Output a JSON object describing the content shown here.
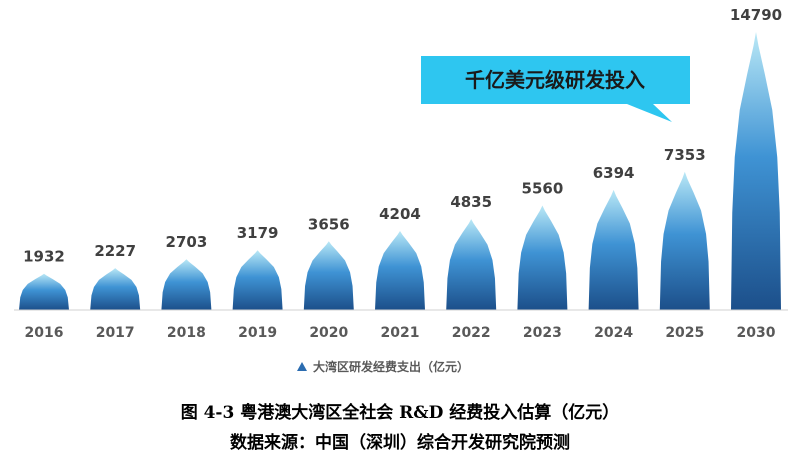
{
  "chart_data": {
    "type": "area",
    "categories": [
      "2016",
      "2017",
      "2018",
      "2019",
      "2020",
      "2021",
      "2022",
      "2023",
      "2024",
      "2025",
      "2030"
    ],
    "series": [
      {
        "name": "大湾区研发经费支出（亿元）",
        "values": [
          1932,
          2227,
          2703,
          3179,
          3656,
          4204,
          4835,
          5560,
          6394,
          7353,
          14790
        ]
      }
    ],
    "data_labels": [
      "1932",
      "2227",
      "2703",
      "3179",
      "3656",
      "4204",
      "4835",
      "5560",
      "6394",
      "7353",
      "14790"
    ],
    "ylim": [
      0,
      14790
    ],
    "grid": false,
    "legend_position": "bottom-center",
    "annotation": "千亿美元级研发投入",
    "colors": {
      "peak_top": "#b9e8f6",
      "peak_mid": "#3f93d4",
      "peak_bottom": "#1c4f8a",
      "callout_fill": "#2ec6f0",
      "axis_line": "#d0d0d0",
      "legend_marker": "#2b6cb0"
    }
  },
  "caption": {
    "title": "图 4-3 粤港澳大湾区全社会 R&D 经费投入估算（亿元）",
    "source": "数据来源：中国（深圳）综合开发研究院预测"
  }
}
